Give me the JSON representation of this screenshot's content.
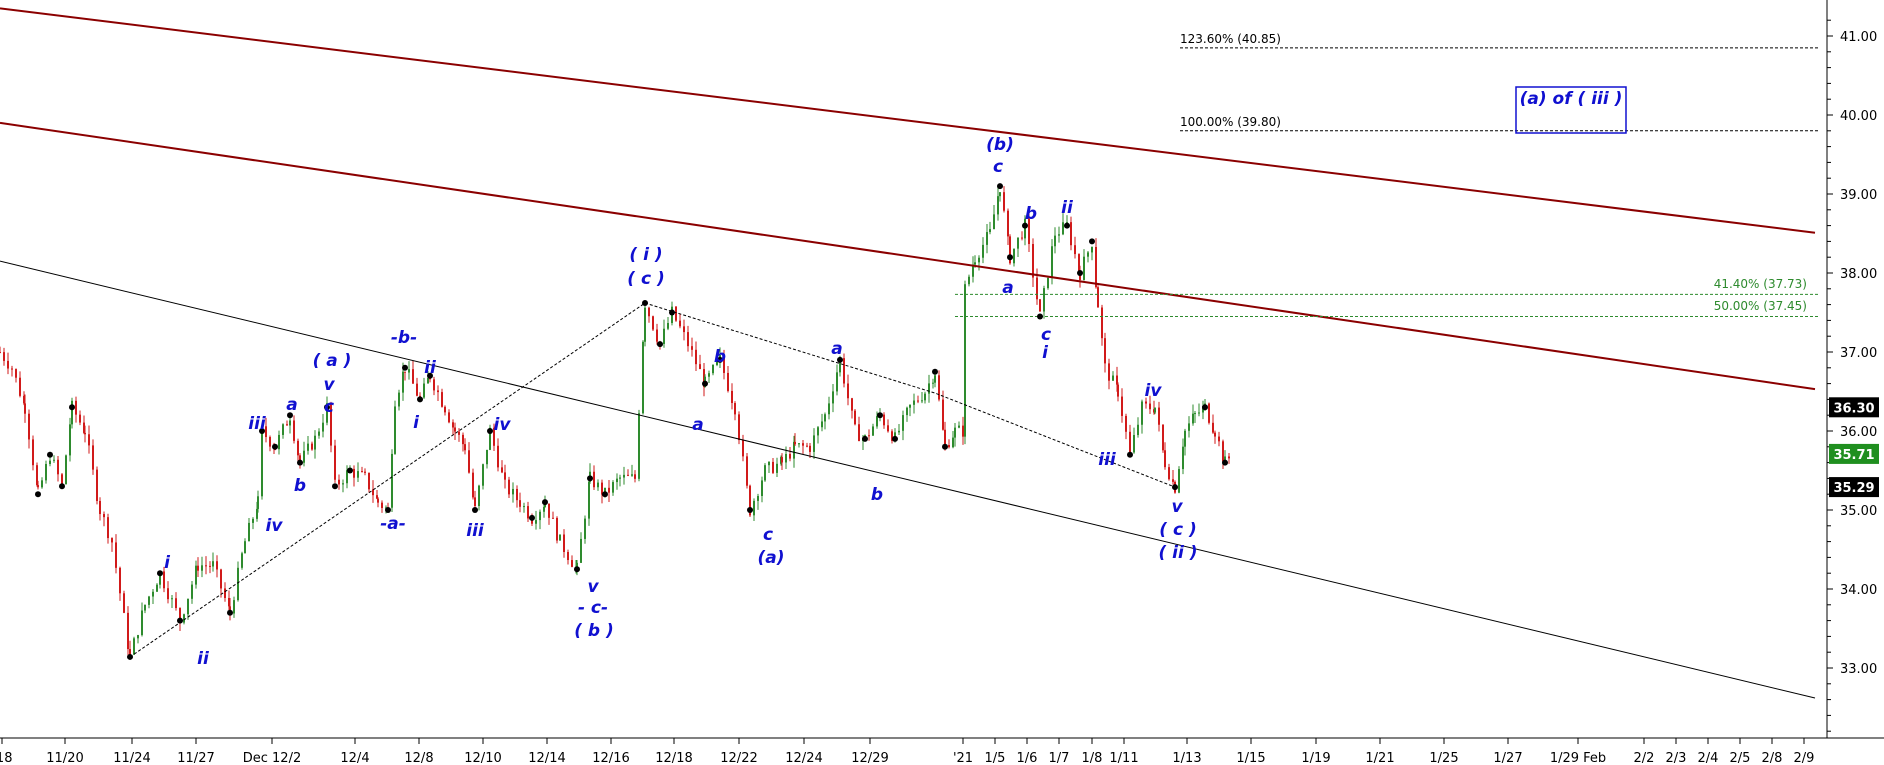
{
  "chart_data": {
    "type": "candlestick",
    "ylim": [
      32.2,
      41.4
    ],
    "y_ticks": [
      "33.00",
      "34.00",
      "35.00",
      "36.00",
      "37.00",
      "38.00",
      "39.00",
      "40.00",
      "41.00"
    ],
    "y_tick_values": [
      33,
      34,
      35,
      36,
      37,
      38,
      39,
      40,
      41
    ],
    "x_ticks": [
      "/18",
      "11/20",
      "11/24",
      "11/27",
      "Dec 12/2",
      "12/4",
      "12/8",
      "12/10",
      "12/14",
      "12/16",
      "12/18",
      "12/22",
      "12/24",
      "12/29",
      "'21",
      "1/5",
      "1/6",
      "1/7",
      "1/8",
      "1/11",
      "1/13",
      "1/15",
      "1/19",
      "1/21",
      "1/25",
      "1/27",
      "1/29 Feb",
      "2/2",
      "2/3",
      "2/4",
      "2/5",
      "2/8",
      "2/9"
    ],
    "price_badges": [
      {
        "label": "36.30",
        "value": 36.3,
        "color": "#000000"
      },
      {
        "label": "35.71",
        "value": 35.71,
        "color": "#1f8f1f"
      },
      {
        "label": "35.29",
        "value": 35.29,
        "color": "#000000"
      }
    ],
    "fib_levels": [
      {
        "label": "123.60% (40.85)",
        "value": 40.85,
        "color": "#000000"
      },
      {
        "label": "100.00% (39.80)",
        "value": 39.8,
        "color": "#000000"
      },
      {
        "label": "41.40% (37.73)",
        "value": 37.73,
        "color": "#2e8b2e"
      },
      {
        "label": "50.00% (37.45)",
        "value": 37.45,
        "color": "#2e8b2e"
      }
    ],
    "channel_lines": [
      {
        "color": "#8b0000",
        "from": {
          "x": 0,
          "y": 41.35
        },
        "to": {
          "x": 1815,
          "y": 38.51
        }
      },
      {
        "color": "#8b0000",
        "from": {
          "x": 0,
          "y": 39.9
        },
        "to": {
          "x": 1815,
          "y": 36.53
        }
      },
      {
        "color": "#000000",
        "from": {
          "x": 0,
          "y": 38.15
        },
        "to": {
          "x": 1815,
          "y": 32.62
        }
      }
    ],
    "dotted_lines": [
      [
        {
          "x": 130,
          "y": 33.14
        },
        {
          "x": 645,
          "y": 37.62
        }
      ],
      [
        {
          "x": 645,
          "y": 37.62
        },
        {
          "x": 935,
          "y": 36.48
        },
        {
          "x": 1175,
          "y": 35.29
        }
      ]
    ],
    "price_path": [
      [
        0,
        37.0
      ],
      [
        12,
        36.8
      ],
      [
        25,
        36.3
      ],
      [
        38,
        35.2
      ],
      [
        50,
        35.7
      ],
      [
        62,
        35.3
      ],
      [
        72,
        36.3
      ],
      [
        85,
        36.0
      ],
      [
        100,
        35.0
      ],
      [
        112,
        34.6
      ],
      [
        130,
        33.14
      ],
      [
        145,
        33.8
      ],
      [
        160,
        34.2
      ],
      [
        180,
        33.6
      ],
      [
        198,
        34.3
      ],
      [
        213,
        34.3
      ],
      [
        230,
        33.7
      ],
      [
        245,
        34.6
      ],
      [
        258,
        35.1
      ],
      [
        262,
        36.0
      ],
      [
        275,
        35.8
      ],
      [
        290,
        36.2
      ],
      [
        300,
        35.6
      ],
      [
        315,
        35.9
      ],
      [
        327,
        36.3
      ],
      [
        335,
        35.3
      ],
      [
        350,
        35.5
      ],
      [
        365,
        35.4
      ],
      [
        378,
        35.1
      ],
      [
        388,
        35.0
      ],
      [
        395,
        36.4
      ],
      [
        405,
        36.8
      ],
      [
        420,
        36.4
      ],
      [
        430,
        36.7
      ],
      [
        445,
        36.3
      ],
      [
        455,
        36.0
      ],
      [
        465,
        35.8
      ],
      [
        475,
        35.0
      ],
      [
        490,
        36.0
      ],
      [
        505,
        35.3
      ],
      [
        520,
        35.1
      ],
      [
        532,
        34.9
      ],
      [
        545,
        35.1
      ],
      [
        560,
        34.6
      ],
      [
        577,
        34.25
      ],
      [
        590,
        35.4
      ],
      [
        605,
        35.2
      ],
      [
        620,
        35.4
      ],
      [
        635,
        35.4
      ],
      [
        645,
        37.62
      ],
      [
        660,
        37.1
      ],
      [
        672,
        37.5
      ],
      [
        688,
        37.1
      ],
      [
        705,
        36.6
      ],
      [
        720,
        36.9
      ],
      [
        735,
        36.3
      ],
      [
        750,
        35.0
      ],
      [
        765,
        35.5
      ],
      [
        782,
        35.6
      ],
      [
        795,
        35.8
      ],
      [
        810,
        35.8
      ],
      [
        825,
        36.2
      ],
      [
        840,
        36.9
      ],
      [
        855,
        36.0
      ],
      [
        865,
        35.9
      ],
      [
        880,
        36.2
      ],
      [
        895,
        35.9
      ],
      [
        910,
        36.3
      ],
      [
        925,
        36.5
      ],
      [
        935,
        36.75
      ],
      [
        945,
        35.8
      ],
      [
        955,
        36.0
      ],
      [
        965,
        36.0
      ],
      [
        965,
        37.8
      ],
      [
        975,
        38.2
      ],
      [
        990,
        38.5
      ],
      [
        1000,
        39.1
      ],
      [
        1010,
        38.2
      ],
      [
        1025,
        38.6
      ],
      [
        1040,
        37.45
      ],
      [
        1055,
        38.5
      ],
      [
        1067,
        38.6
      ],
      [
        1080,
        38.0
      ],
      [
        1092,
        38.4
      ],
      [
        1098,
        37.6
      ],
      [
        1105,
        36.8
      ],
      [
        1118,
        36.5
      ],
      [
        1130,
        35.7
      ],
      [
        1142,
        36.3
      ],
      [
        1155,
        36.3
      ],
      [
        1165,
        35.6
      ],
      [
        1175,
        35.29
      ],
      [
        1185,
        36.0
      ],
      [
        1195,
        36.2
      ],
      [
        1205,
        36.3
      ],
      [
        1215,
        36.0
      ],
      [
        1225,
        35.6
      ],
      [
        1232,
        35.7
      ]
    ],
    "wave_labels": [
      "(b)",
      "c",
      "b",
      "ii",
      "a",
      "c",
      "i",
      "( i )",
      "( c )",
      "b",
      "a",
      "a",
      "b",
      "-b-",
      "ii",
      "i",
      "( a )",
      "v",
      "c",
      "a",
      "b",
      "iii",
      "iv",
      "iii",
      "-a-",
      "iv",
      "iii",
      "v",
      "- c-",
      "( b )",
      "c",
      "(a)",
      "i",
      "ii",
      "iv",
      "iii",
      "v",
      "( c )",
      "( ii )"
    ],
    "annotation_box": "(a) of ( iii )"
  }
}
